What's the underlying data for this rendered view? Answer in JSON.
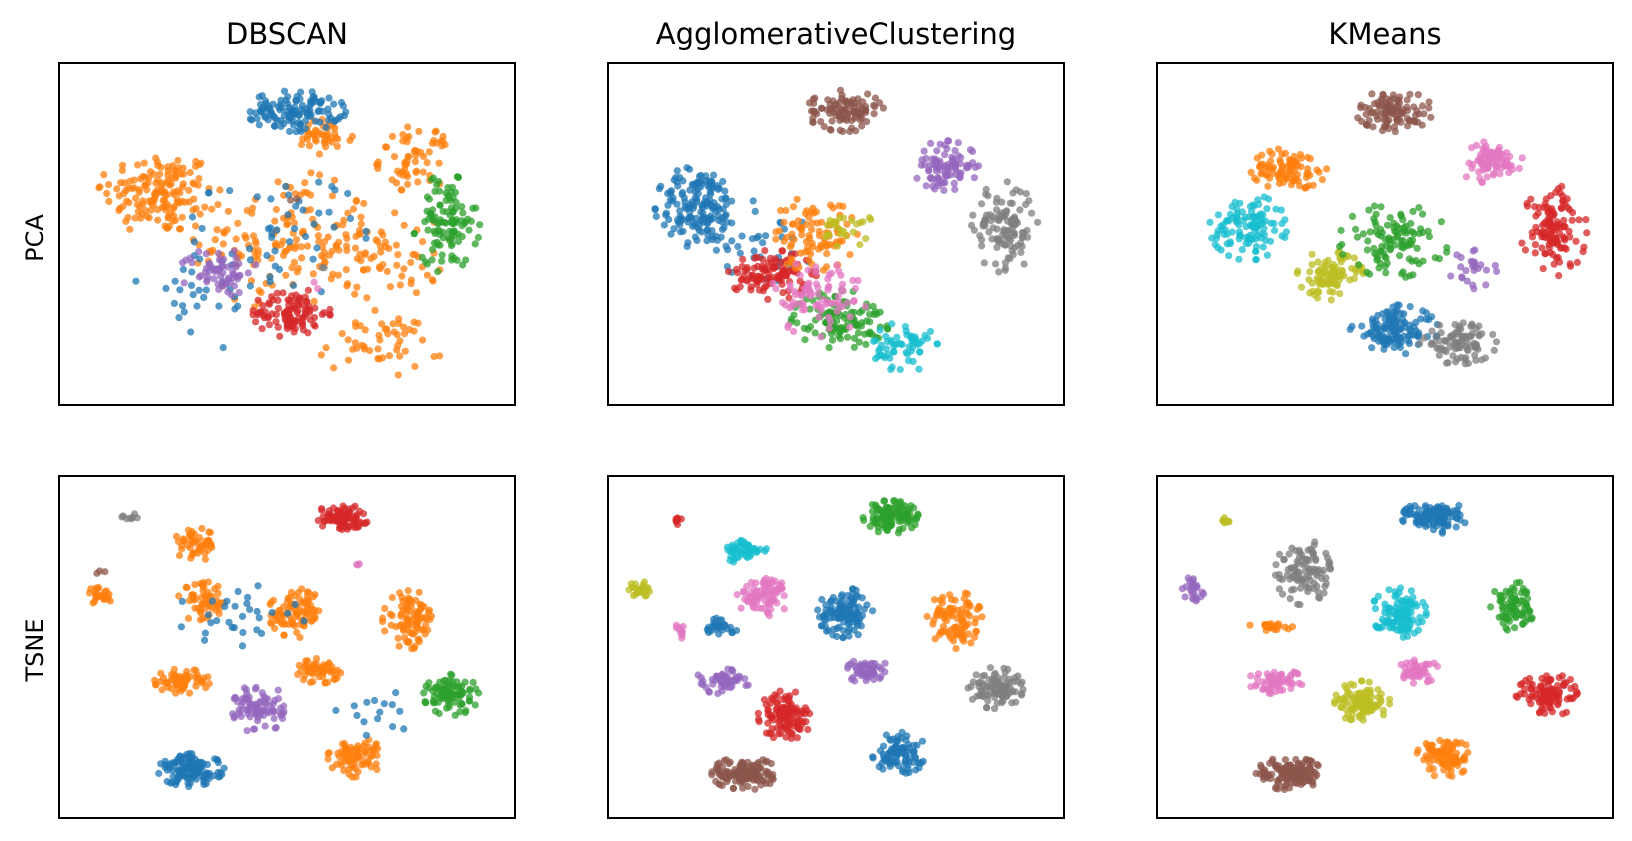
{
  "chart_data": {
    "type": "scatter",
    "columns": [
      "DBSCAN",
      "AgglomerativeClustering",
      "KMeans"
    ],
    "rows": [
      "PCA",
      "TSNE"
    ],
    "grid": false,
    "ticks": "none",
    "palette": {
      "blue": "#1f77b4",
      "orange": "#ff7f0e",
      "green": "#2ca02c",
      "red": "#d62728",
      "purple": "#9467bd",
      "brown": "#8c564b",
      "pink": "#e377c2",
      "gray": "#7f7f7f",
      "olive": "#bcbd22",
      "cyan": "#17becf"
    },
    "marker_alpha": 0.75,
    "panels": [
      {
        "row": "PCA",
        "column": "DBSCAN",
        "xlim": [
          0,
          100
        ],
        "ylim": [
          0,
          100
        ],
        "clusters": [
          {
            "color": "orange",
            "blobs": [
              [
                22,
                62,
                11,
                11,
                150
              ],
              [
                50,
                48,
                17,
                17,
                150
              ],
              [
                72,
                44,
                12,
                11,
                60
              ],
              [
                70,
                18,
                12,
                8,
                50
              ],
              [
                78,
                72,
                7,
                8,
                60
              ],
              [
                58,
                78,
                6,
                5,
                40
              ]
            ]
          },
          {
            "color": "blue",
            "blobs": [
              [
                52,
                86,
                9,
                5,
                120
              ],
              [
                48,
                50,
                16,
                16,
                50
              ],
              [
                30,
                30,
                12,
                12,
                25
              ]
            ]
          },
          {
            "color": "green",
            "blobs": [
              [
                85,
                53,
                6,
                12,
                110
              ]
            ]
          },
          {
            "color": "purple",
            "blobs": [
              [
                35,
                39,
                7,
                6,
                65
              ]
            ]
          },
          {
            "color": "red",
            "blobs": [
              [
                51,
                27,
                7,
                6,
                100
              ]
            ]
          },
          {
            "color": "brown",
            "blobs": [
              [
                52,
                60,
                1,
                1,
                2
              ]
            ]
          },
          {
            "color": "gray",
            "blobs": [
              [
                58,
                40,
                1,
                1,
                2
              ]
            ]
          },
          {
            "color": "pink",
            "blobs": [
              [
                56,
                35,
                1,
                1,
                2
              ]
            ]
          }
        ]
      },
      {
        "row": "PCA",
        "column": "AgglomerativeClustering",
        "xlim": [
          0,
          100
        ],
        "ylim": [
          0,
          100
        ],
        "clusters": [
          {
            "color": "blue",
            "blobs": [
              [
                20,
                58,
                8,
                10,
                160
              ],
              [
                35,
                48,
                10,
                10,
                35
              ]
            ]
          },
          {
            "color": "brown",
            "blobs": [
              [
                52,
                86,
                7,
                5,
                100
              ]
            ]
          },
          {
            "color": "purple",
            "blobs": [
              [
                74,
                70,
                6,
                6,
                90
              ]
            ]
          },
          {
            "color": "gray",
            "blobs": [
              [
                87,
                52,
                6,
                11,
                110
              ]
            ]
          },
          {
            "color": "red",
            "blobs": [
              [
                36,
                38,
                8,
                6,
                110
              ]
            ]
          },
          {
            "color": "orange",
            "blobs": [
              [
                45,
                50,
                8,
                9,
                90
              ]
            ]
          },
          {
            "color": "green",
            "blobs": [
              [
                51,
                25,
                9,
                7,
                110
              ]
            ]
          },
          {
            "color": "pink",
            "blobs": [
              [
                46,
                32,
                9,
                10,
                80
              ]
            ]
          },
          {
            "color": "cyan",
            "blobs": [
              [
                65,
                17,
                6,
                6,
                60
              ]
            ]
          },
          {
            "color": "olive",
            "blobs": [
              [
                52,
                52,
                5,
                5,
                25
              ]
            ]
          }
        ]
      },
      {
        "row": "PCA",
        "column": "KMeans",
        "xlim": [
          0,
          100
        ],
        "ylim": [
          0,
          100
        ],
        "clusters": [
          {
            "color": "brown",
            "blobs": [
              [
                52,
                86,
                7,
                5,
                100
              ]
            ]
          },
          {
            "color": "pink",
            "blobs": [
              [
                73,
                71,
                6,
                5,
                80
              ]
            ]
          },
          {
            "color": "orange",
            "blobs": [
              [
                29,
                69,
                7,
                5,
                90
              ]
            ]
          },
          {
            "color": "cyan",
            "blobs": [
              [
                20,
                52,
                7,
                8,
                110
              ]
            ]
          },
          {
            "color": "red",
            "blobs": [
              [
                87,
                51,
                6,
                11,
                120
              ]
            ]
          },
          {
            "color": "olive",
            "blobs": [
              [
                38,
                38,
                6,
                6,
                90
              ]
            ]
          },
          {
            "color": "green",
            "blobs": [
              [
                52,
                48,
                10,
                9,
                110
              ]
            ]
          },
          {
            "color": "blue",
            "blobs": [
              [
                52,
                22,
                8,
                6,
                120
              ]
            ]
          },
          {
            "color": "gray",
            "blobs": [
              [
                66,
                18,
                7,
                5,
                90
              ]
            ]
          },
          {
            "color": "purple",
            "blobs": [
              [
                70,
                40,
                5,
                5,
                25
              ]
            ]
          }
        ]
      },
      {
        "row": "TSNE",
        "column": "DBSCAN",
        "xlim": [
          0,
          100
        ],
        "ylim": [
          0,
          100
        ],
        "clusters": [
          {
            "color": "orange",
            "blobs": [
              [
                30,
                80,
                4,
                4,
                50
              ],
              [
                32,
                63,
                5,
                5,
                55
              ],
              [
                52,
                60,
                5,
                6,
                90
              ],
              [
                77,
                58,
                5,
                7,
                90
              ],
              [
                9,
                65,
                3,
                2,
                25
              ],
              [
                27,
                40,
                5,
                3,
                60
              ],
              [
                57,
                43,
                4,
                3,
                55
              ],
              [
                65,
                18,
                5,
                5,
                75
              ]
            ]
          },
          {
            "color": "red",
            "blobs": [
              [
                62,
                88,
                5,
                3,
                90
              ]
            ]
          },
          {
            "color": "gray",
            "blobs": [
              [
                15,
                88,
                2,
                1,
                8
              ]
            ]
          },
          {
            "color": "brown",
            "blobs": [
              [
                9,
                72,
                1,
                1,
                3
              ]
            ]
          },
          {
            "color": "green",
            "blobs": [
              [
                86,
                36,
                5,
                5,
                90
              ]
            ]
          },
          {
            "color": "purple",
            "blobs": [
              [
                44,
                32,
                5,
                6,
                80
              ]
            ]
          },
          {
            "color": "blue",
            "blobs": [
              [
                29,
                14,
                6,
                4,
                130
              ],
              [
                40,
                60,
                12,
                8,
                30
              ],
              [
                70,
                30,
                8,
                6,
                15
              ]
            ]
          },
          {
            "color": "pink",
            "blobs": [
              [
                66,
                74,
                1,
                1,
                3
              ]
            ]
          }
        ]
      },
      {
        "row": "TSNE",
        "column": "AgglomerativeClustering",
        "xlim": [
          0,
          100
        ],
        "ylim": [
          0,
          100
        ],
        "clusters": [
          {
            "color": "green",
            "blobs": [
              [
                62,
                88,
                5,
                4,
                110
              ]
            ]
          },
          {
            "color": "red",
            "blobs": [
              [
                15,
                87,
                1,
                1,
                8
              ],
              [
                39,
                30,
                5,
                6,
                110
              ]
            ]
          },
          {
            "color": "cyan",
            "blobs": [
              [
                30,
                78,
                4,
                3,
                50
              ]
            ]
          },
          {
            "color": "pink",
            "blobs": [
              [
                34,
                65,
                5,
                5,
                80
              ],
              [
                16,
                55,
                1,
                2,
                10
              ]
            ]
          },
          {
            "color": "olive",
            "blobs": [
              [
                7,
                67,
                2,
                2,
                25
              ]
            ]
          },
          {
            "color": "blue",
            "blobs": [
              [
                24,
                56,
                4,
                2,
                30
              ],
              [
                52,
                60,
                5,
                6,
                110
              ],
              [
                64,
                19,
                5,
                5,
                90
              ]
            ]
          },
          {
            "color": "orange",
            "blobs": [
              [
                76,
                58,
                5,
                7,
                90
              ]
            ]
          },
          {
            "color": "purple",
            "blobs": [
              [
                25,
                40,
                5,
                3,
                60
              ],
              [
                57,
                43,
                4,
                3,
                55
              ]
            ]
          },
          {
            "color": "gray",
            "blobs": [
              [
                85,
                38,
                5,
                5,
                90
              ]
            ]
          },
          {
            "color": "brown",
            "blobs": [
              [
                30,
                13,
                6,
                4,
                130
              ]
            ]
          }
        ]
      },
      {
        "row": "TSNE",
        "column": "KMeans",
        "xlim": [
          0,
          100
        ],
        "ylim": [
          0,
          100
        ],
        "clusters": [
          {
            "color": "blue",
            "blobs": [
              [
                61,
                88,
                6,
                4,
                110
              ]
            ]
          },
          {
            "color": "olive",
            "blobs": [
              [
                15,
                87,
                1,
                1,
                8
              ],
              [
                45,
                34,
                5,
                5,
                100
              ]
            ]
          },
          {
            "color": "gray",
            "blobs": [
              [
                32,
                72,
                5,
                8,
                100
              ]
            ]
          },
          {
            "color": "purple",
            "blobs": [
              [
                8,
                67,
                2,
                3,
                25
              ]
            ]
          },
          {
            "color": "cyan",
            "blobs": [
              [
                53,
                60,
                5,
                6,
                110
              ]
            ]
          },
          {
            "color": "green",
            "blobs": [
              [
                78,
                62,
                4,
                6,
                80
              ]
            ]
          },
          {
            "color": "orange",
            "blobs": [
              [
                25,
                56,
                4,
                1,
                25
              ],
              [
                63,
                18,
                5,
                5,
                90
              ]
            ]
          },
          {
            "color": "pink",
            "blobs": [
              [
                26,
                40,
                5,
                3,
                60
              ],
              [
                57,
                43,
                4,
                3,
                55
              ]
            ]
          },
          {
            "color": "red",
            "blobs": [
              [
                86,
                36,
                6,
                5,
                100
              ]
            ]
          },
          {
            "color": "brown",
            "blobs": [
              [
                29,
                13,
                6,
                4,
                130
              ]
            ]
          }
        ]
      }
    ]
  }
}
